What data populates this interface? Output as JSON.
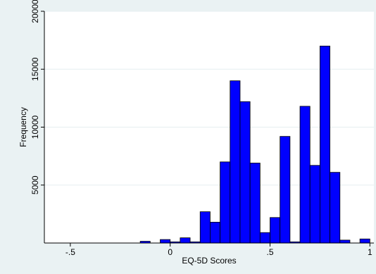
{
  "chart_data": {
    "type": "bar",
    "title": "",
    "xlabel": "EQ-5D Scores",
    "ylabel": "Frequency",
    "xlim": [
      -0.63,
      1.02
    ],
    "ylim": [
      0,
      20000
    ],
    "x_ticks": [
      -0.5,
      0,
      0.5,
      1
    ],
    "x_tick_labels": [
      "-.5",
      "0",
      ".5",
      "1"
    ],
    "y_ticks": [
      5000,
      10000,
      15000,
      20000
    ],
    "y_tick_labels": [
      "5000",
      "10000",
      "15000",
      "20000"
    ],
    "grid": true,
    "bin_width": 0.05,
    "bin_starts": [
      -0.15,
      -0.1,
      -0.05,
      0.0,
      0.05,
      0.1,
      0.15,
      0.2,
      0.25,
      0.3,
      0.35,
      0.4,
      0.45,
      0.5,
      0.55,
      0.6,
      0.65,
      0.7,
      0.75,
      0.8,
      0.85,
      0.9,
      0.95
    ],
    "values": [
      150,
      0,
      300,
      100,
      450,
      100,
      2700,
      1800,
      7000,
      14000,
      12200,
      6900,
      900,
      2200,
      9200,
      100,
      11800,
      6700,
      17000,
      6100,
      250,
      0,
      350
    ],
    "bar_color": "#0000ff"
  }
}
